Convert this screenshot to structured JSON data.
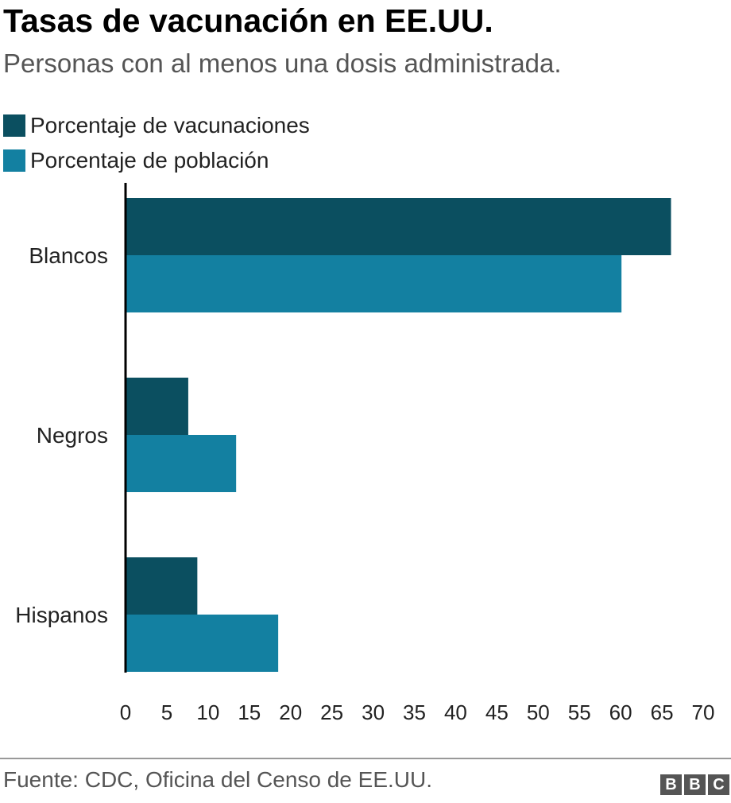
{
  "title": "Tasas de vacunación en EE.UU.",
  "subtitle": "Personas con al menos una dosis administrada.",
  "source": "Fuente: CDC, Oficina del Censo de EE.UU.",
  "logo": {
    "letters": [
      "B",
      "B",
      "C"
    ]
  },
  "legend": [
    {
      "label": "Porcentaje de vacunaciones",
      "color": "#0b4f60"
    },
    {
      "label": "Porcentaje de población",
      "color": "#1380a1"
    }
  ],
  "chart_data": {
    "type": "bar",
    "orientation": "horizontal",
    "categories": [
      "Blancos",
      "Negros",
      "Hispanos"
    ],
    "series": [
      {
        "name": "Porcentaje de vacunaciones",
        "color": "#0b4f60",
        "values": [
          66.1,
          7.6,
          8.7
        ]
      },
      {
        "name": "Porcentaje de población",
        "color": "#1380a1",
        "values": [
          60.1,
          13.4,
          18.5
        ]
      }
    ],
    "xlim": [
      0,
      70
    ],
    "xticks": [
      0,
      5,
      10,
      15,
      20,
      25,
      30,
      35,
      40,
      45,
      50,
      55,
      60,
      65,
      70
    ],
    "grid": false,
    "legend_position": "top-left"
  }
}
